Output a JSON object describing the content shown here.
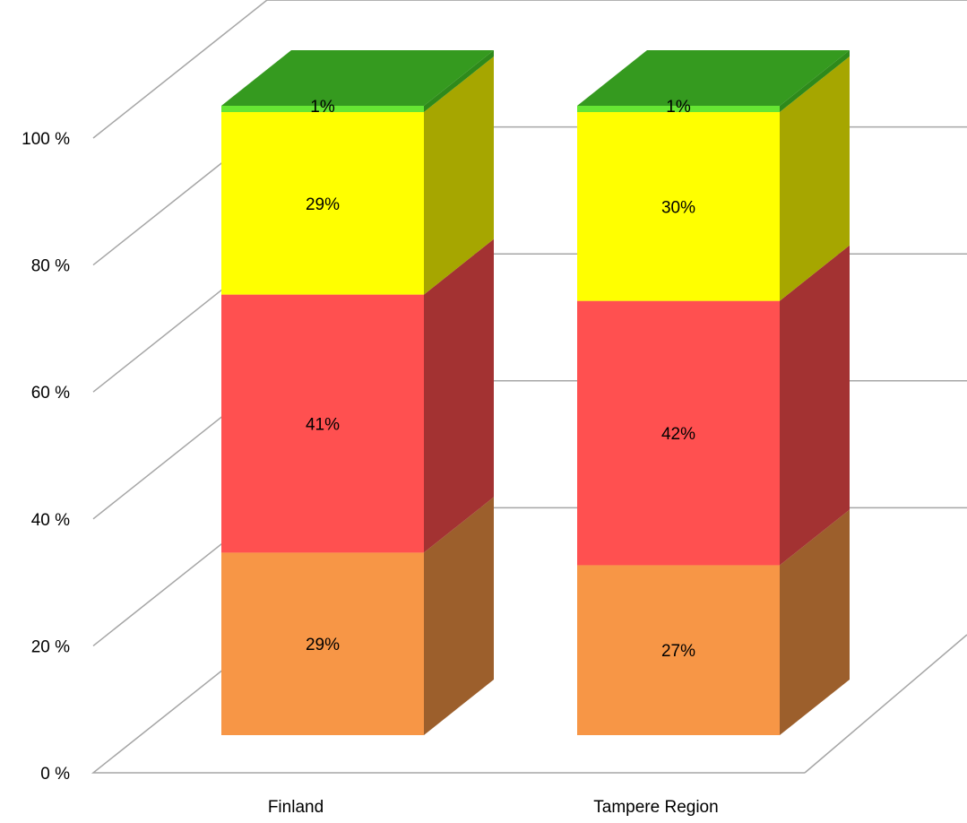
{
  "chart_data": {
    "type": "bar",
    "stacked": true,
    "three_d": true,
    "categories": [
      "Finland",
      "Tampere Region"
    ],
    "yticks": [
      "0 %",
      "20 %",
      "40 %",
      "60 %",
      "80 %",
      "100 %"
    ],
    "ylim": [
      0,
      100
    ],
    "grid": true,
    "series": [
      {
        "values": [
          29,
          27
        ],
        "labels": [
          "29%",
          "27%"
        ],
        "color": "#f79646",
        "side_color": "#9c5f2c"
      },
      {
        "values": [
          41,
          42
        ],
        "labels": [
          "41%",
          "42%"
        ],
        "color": "#ff5050",
        "side_color": "#a33232"
      },
      {
        "values": [
          29,
          30
        ],
        "labels": [
          "29%",
          "30%"
        ],
        "color": "#ffff00",
        "side_color": "#a6a600"
      },
      {
        "values": [
          1,
          1
        ],
        "labels": [
          "1%",
          "1%"
        ],
        "color": "#66e633",
        "side_color": "#2e8a1b",
        "top_color": "#359a1f"
      }
    ]
  }
}
